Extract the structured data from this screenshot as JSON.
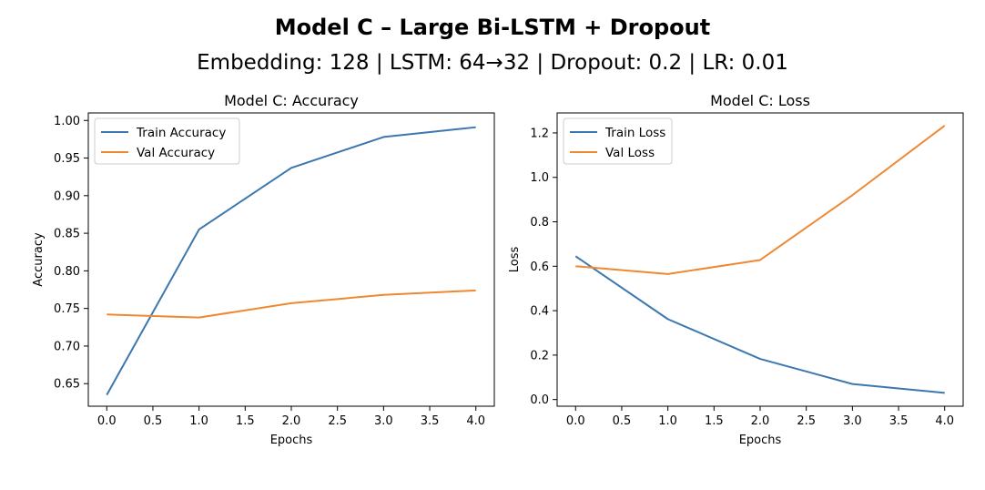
{
  "figure": {
    "title": "Model C – Large Bi-LSTM + Dropout",
    "subtitle": "Embedding: 128 | LSTM: 64→32 | Dropout: 0.2 | LR: 0.01"
  },
  "colors": {
    "train": "#3c77b0",
    "val": "#ef8833"
  },
  "chart_data": [
    {
      "type": "line",
      "title": "Model C: Accuracy",
      "xlabel": "Epochs",
      "ylabel": "Accuracy",
      "x": [
        0,
        1,
        2,
        3,
        4
      ],
      "xlim": [
        -0.2,
        4.2
      ],
      "ylim": [
        0.62,
        1.01
      ],
      "xticks": [
        0.0,
        0.5,
        1.0,
        1.5,
        2.0,
        2.5,
        3.0,
        3.5,
        4.0
      ],
      "xtick_labels": [
        "0.0",
        "0.5",
        "1.0",
        "1.5",
        "2.0",
        "2.5",
        "3.0",
        "3.5",
        "4.0"
      ],
      "yticks": [
        0.65,
        0.7,
        0.75,
        0.8,
        0.85,
        0.9,
        0.95,
        1.0
      ],
      "ytick_labels": [
        "0.65",
        "0.70",
        "0.75",
        "0.80",
        "0.85",
        "0.90",
        "0.95",
        "1.00"
      ],
      "legend": "top-left",
      "grid": false,
      "series": [
        {
          "name": "Train Accuracy",
          "values": [
            0.635,
            0.855,
            0.937,
            0.978,
            0.991
          ]
        },
        {
          "name": "Val Accuracy",
          "values": [
            0.742,
            0.738,
            0.757,
            0.768,
            0.774
          ]
        }
      ]
    },
    {
      "type": "line",
      "title": "Model C: Loss",
      "xlabel": "Epochs",
      "ylabel": "Loss",
      "x": [
        0,
        1,
        2,
        3,
        4
      ],
      "xlim": [
        -0.2,
        4.2
      ],
      "ylim": [
        -0.03,
        1.29
      ],
      "xticks": [
        0.0,
        0.5,
        1.0,
        1.5,
        2.0,
        2.5,
        3.0,
        3.5,
        4.0
      ],
      "xtick_labels": [
        "0.0",
        "0.5",
        "1.0",
        "1.5",
        "2.0",
        "2.5",
        "3.0",
        "3.5",
        "4.0"
      ],
      "yticks": [
        0.0,
        0.2,
        0.4,
        0.6,
        0.8,
        1.0,
        1.2
      ],
      "ytick_labels": [
        "0.0",
        "0.2",
        "0.4",
        "0.6",
        "0.8",
        "1.0",
        "1.2"
      ],
      "legend": "top-left",
      "grid": false,
      "series": [
        {
          "name": "Train Loss",
          "values": [
            0.645,
            0.362,
            0.183,
            0.07,
            0.03
          ]
        },
        {
          "name": "Val Loss",
          "values": [
            0.6,
            0.565,
            0.628,
            0.92,
            1.233
          ]
        }
      ]
    }
  ]
}
